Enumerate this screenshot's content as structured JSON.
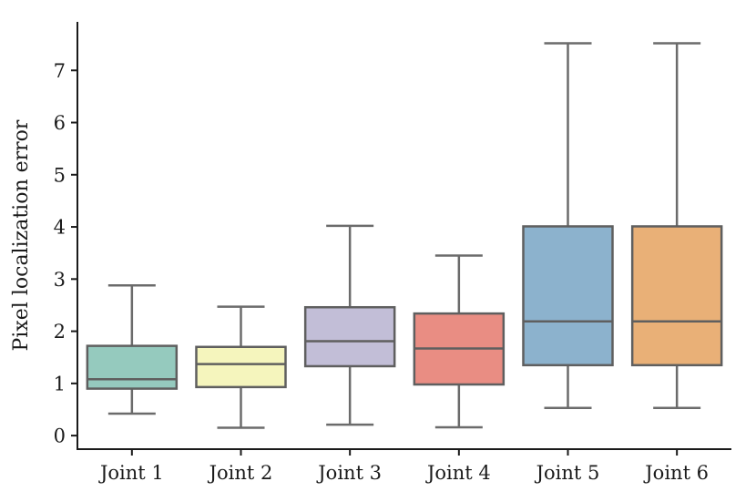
{
  "chart_data": {
    "type": "box",
    "title": "",
    "xlabel": "",
    "ylabel": "Pixel localization error",
    "categories": [
      "Joint 1",
      "Joint 2",
      "Joint 3",
      "Joint 4",
      "Joint 5",
      "Joint 6"
    ],
    "yticks": [
      0,
      1,
      2,
      3,
      4,
      5,
      6,
      7
    ],
    "ylim": [
      -0.26,
      7.93
    ],
    "grid": false,
    "legend": "none",
    "series": [
      {
        "name": "Joint 1",
        "color": "#95cabe",
        "whisker_low": 0.42,
        "q1": 0.9,
        "median": 1.08,
        "q3": 1.72,
        "whisker_high": 2.88
      },
      {
        "name": "Joint 2",
        "color": "#f5f5bd",
        "whisker_low": 0.15,
        "q1": 0.93,
        "median": 1.37,
        "q3": 1.7,
        "whisker_high": 2.47
      },
      {
        "name": "Joint 3",
        "color": "#c2bed7",
        "whisker_low": 0.21,
        "q1": 1.33,
        "median": 1.81,
        "q3": 2.46,
        "whisker_high": 4.02
      },
      {
        "name": "Joint 4",
        "color": "#e98d83",
        "whisker_low": 0.16,
        "q1": 0.98,
        "median": 1.67,
        "q3": 2.34,
        "whisker_high": 3.45
      },
      {
        "name": "Joint 5",
        "color": "#8cb2cd",
        "whisker_low": 0.53,
        "q1": 1.35,
        "median": 2.19,
        "q3": 4.01,
        "whisker_high": 7.52
      },
      {
        "name": "Joint 6",
        "color": "#e9b077",
        "whisker_low": 0.53,
        "q1": 1.35,
        "median": 2.19,
        "q3": 4.01,
        "whisker_high": 7.52
      }
    ],
    "colors": {
      "box_edge": "#5f5f5f",
      "whisker": "#6b6b6b",
      "median": "#5f5f5f",
      "axis": "#1a1a1a",
      "background": "#ffffff"
    }
  }
}
